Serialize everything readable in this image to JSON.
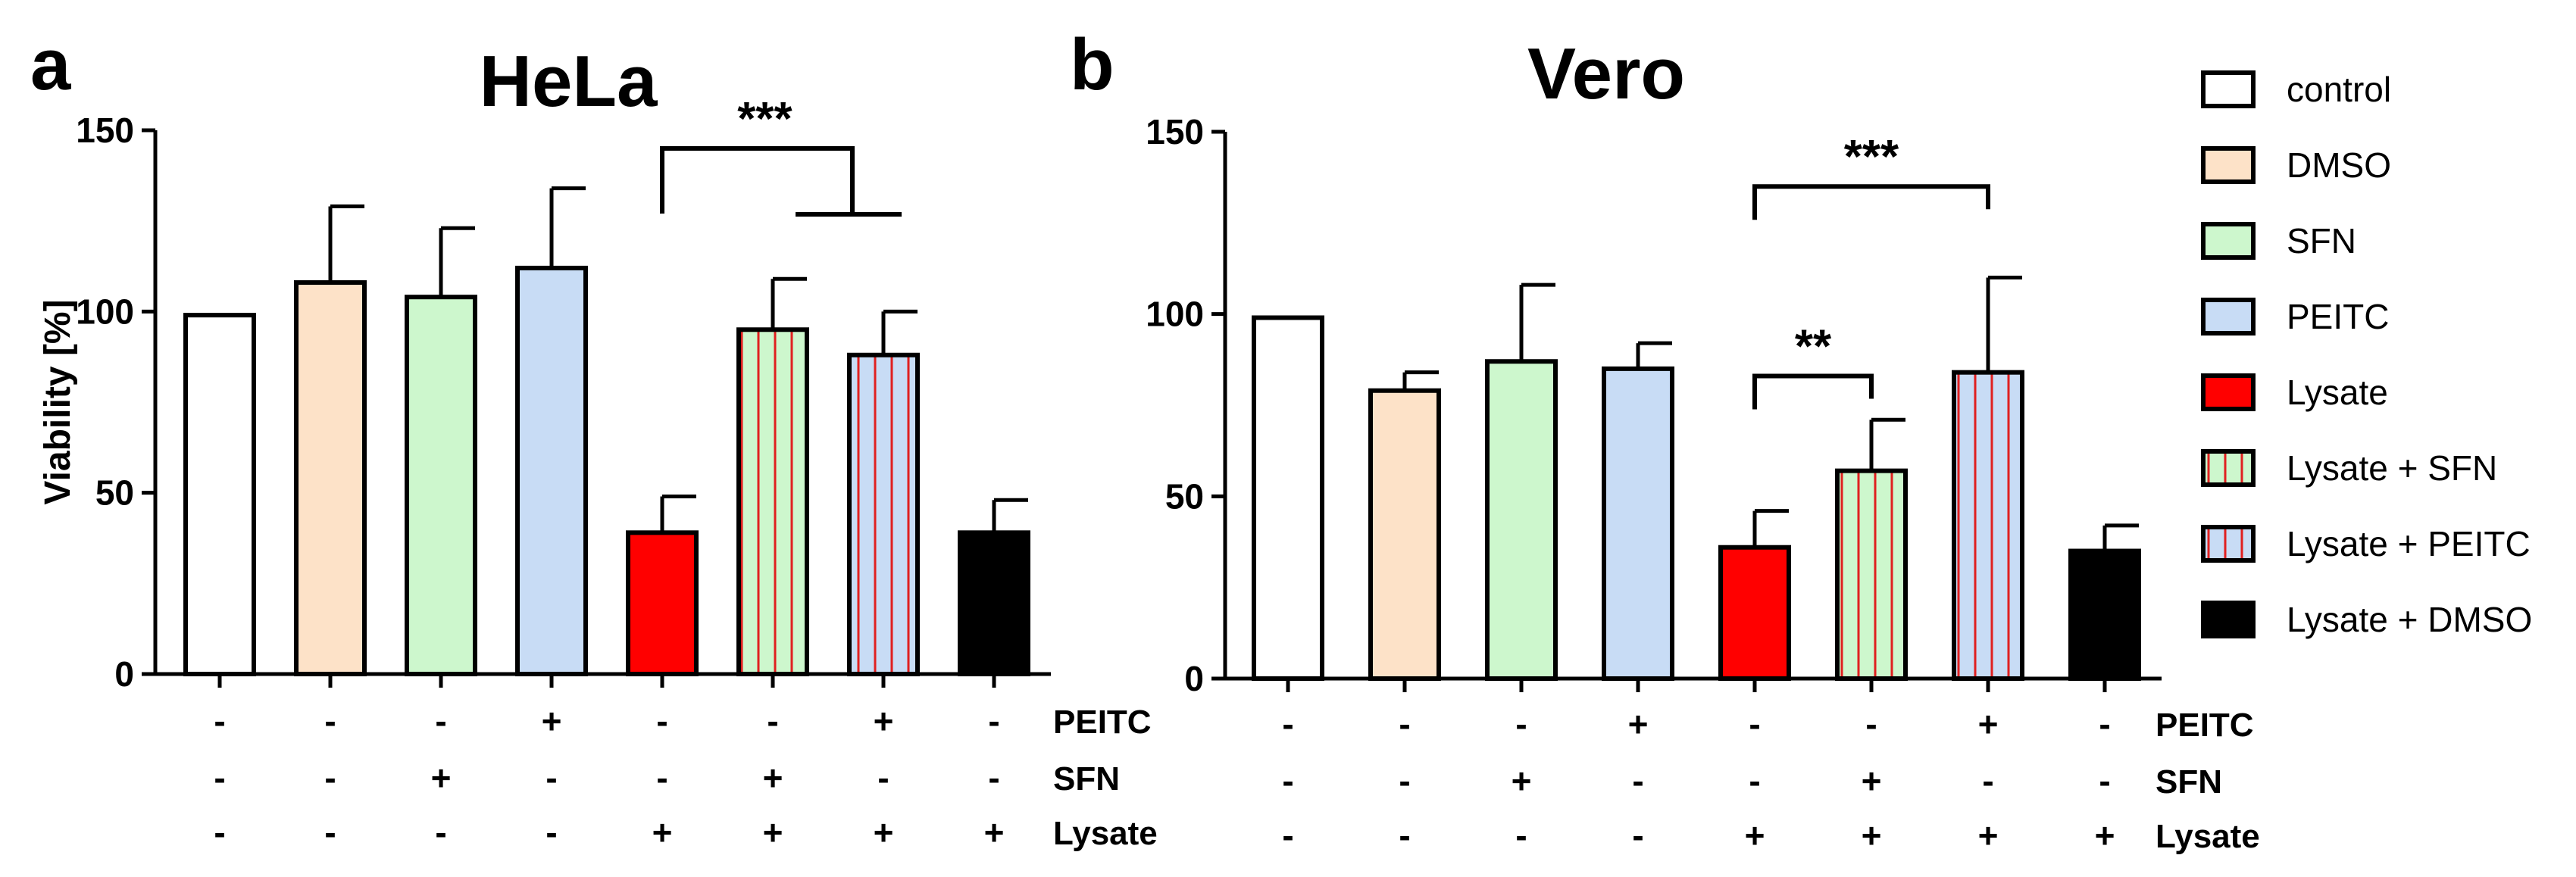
{
  "chart_data": [
    {
      "type": "bar",
      "panel_letter": "a",
      "title": "HeLa",
      "ylabel": "Viability [%]",
      "ylim": [
        0,
        150
      ],
      "yticks": [
        0,
        50,
        100,
        150
      ],
      "categories": [
        "control",
        "DMSO",
        "SFN",
        "PEITC",
        "Lysate",
        "Lysate + SFN",
        "Lysate + PEITC",
        "Lysate + DMSO"
      ],
      "values": [
        99,
        108,
        104,
        112,
        39,
        95,
        88,
        39
      ],
      "errors": [
        0,
        21,
        19,
        22,
        10,
        14,
        12,
        9
      ],
      "conditions": [
        {
          "name": "PEITC",
          "signs": [
            "-",
            "-",
            "-",
            "+",
            "-",
            "-",
            "+",
            "-"
          ]
        },
        {
          "name": "SFN",
          "signs": [
            "-",
            "-",
            "+",
            "-",
            "-",
            "+",
            "-",
            "-"
          ]
        },
        {
          "name": "Lysate",
          "signs": [
            "-",
            "-",
            "-",
            "-",
            "+",
            "+",
            "+",
            "+"
          ]
        }
      ],
      "significance": [
        {
          "label": "***",
          "from": 4,
          "to": [
            5,
            6
          ],
          "kind": "split"
        }
      ]
    },
    {
      "type": "bar",
      "panel_letter": "b",
      "title": "Vero",
      "ylabel": "",
      "ylim": [
        0,
        150
      ],
      "yticks": [
        0,
        50,
        100,
        150
      ],
      "categories": [
        "control",
        "DMSO",
        "SFN",
        "PEITC",
        "Lysate",
        "Lysate + SFN",
        "Lysate + PEITC",
        "Lysate + DMSO"
      ],
      "values": [
        99,
        79,
        87,
        85,
        36,
        57,
        84,
        35
      ],
      "errors": [
        0,
        5,
        21,
        7,
        10,
        14,
        26,
        7
      ],
      "conditions": [
        {
          "name": "PEITC",
          "signs": [
            "-",
            "-",
            "-",
            "+",
            "-",
            "-",
            "+",
            "-"
          ]
        },
        {
          "name": "SFN",
          "signs": [
            "-",
            "-",
            "+",
            "-",
            "-",
            "+",
            "-",
            "-"
          ]
        },
        {
          "name": "Lysate",
          "signs": [
            "-",
            "-",
            "-",
            "-",
            "+",
            "+",
            "+",
            "+"
          ]
        }
      ],
      "significance": [
        {
          "label": "***",
          "from": 4,
          "to": [
            6
          ],
          "kind": "bracket",
          "height": 135
        },
        {
          "label": "**",
          "from": 4,
          "to": [
            5
          ],
          "kind": "bracket",
          "height": 83
        }
      ]
    }
  ],
  "legend": [
    {
      "label": "control",
      "fill": "#ffffff",
      "stripe": null
    },
    {
      "label": "DMSO",
      "fill": "#fde2c8",
      "stripe": null
    },
    {
      "label": "SFN",
      "fill": "#cdf7cd",
      "stripe": null
    },
    {
      "label": "PEITC",
      "fill": "#c8dcf5",
      "stripe": null
    },
    {
      "label": "Lysate",
      "fill": "#ff0000",
      "stripe": null
    },
    {
      "label": "Lysate + SFN",
      "fill": "#cdf7cd",
      "stripe": "#e02020"
    },
    {
      "label": "Lysate + PEITC",
      "fill": "#c8dcf5",
      "stripe": "#e02020"
    },
    {
      "label": "Lysate + DMSO",
      "fill": "#000000",
      "stripe": null
    }
  ]
}
